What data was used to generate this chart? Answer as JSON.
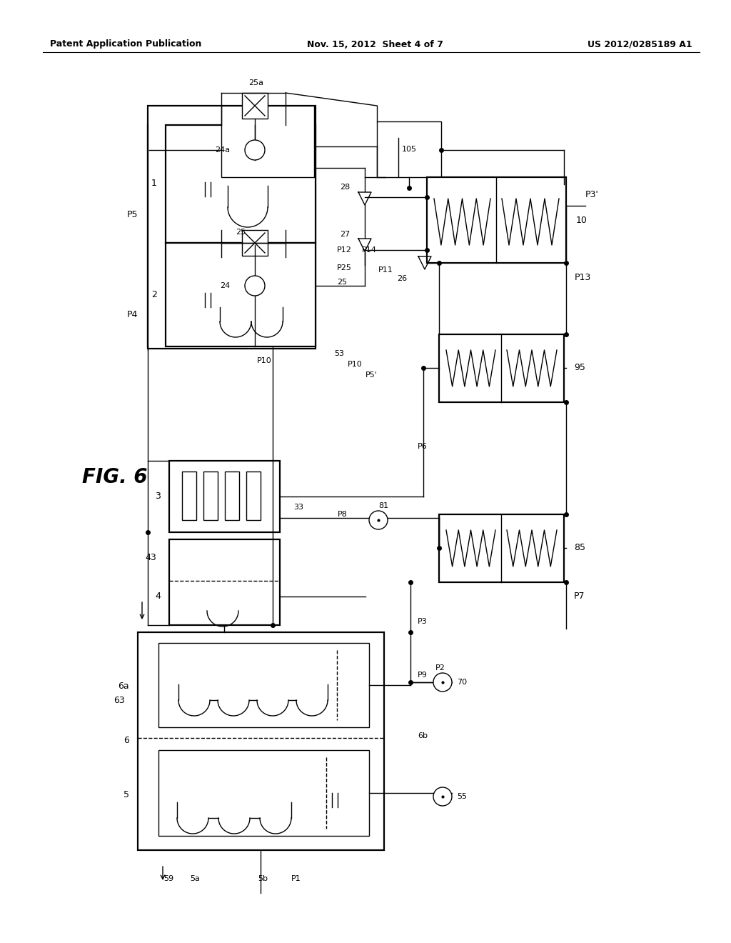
{
  "bg_color": "#ffffff",
  "title_left": "Patent Application Publication",
  "title_mid": "Nov. 15, 2012  Sheet 4 of 7",
  "title_right": "US 2012/0285189 A1",
  "fig_label": "FIG. 6",
  "header_fontsize": 9,
  "fig_fontsize": 20
}
